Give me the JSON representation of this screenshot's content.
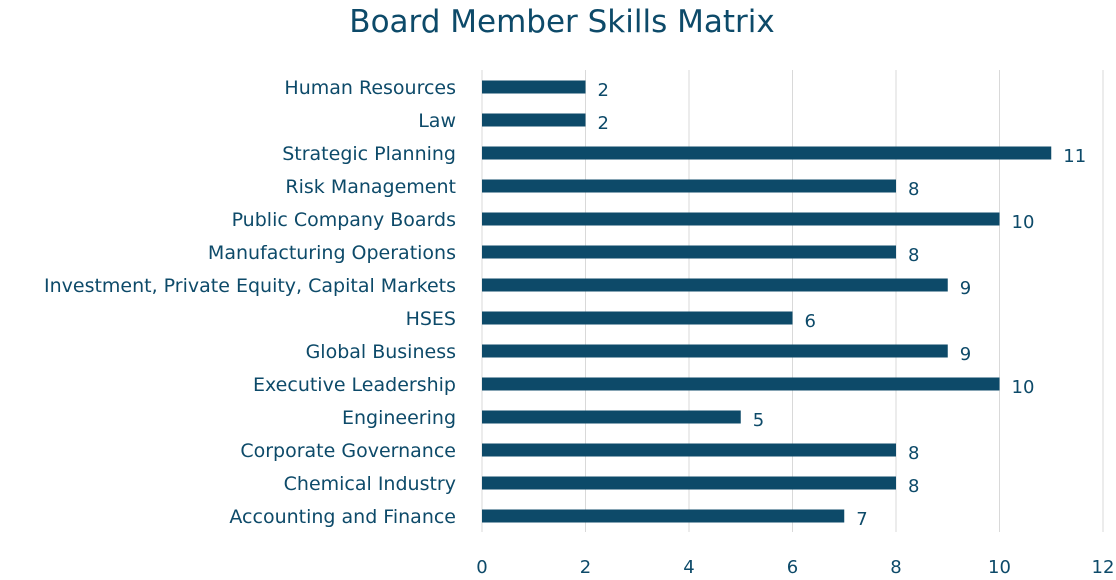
{
  "chart_data": {
    "type": "bar",
    "orientation": "horizontal",
    "title": "Board Member Skills Matrix",
    "xlabel": "",
    "ylabel": "",
    "categories": [
      "Human Resources",
      "Law",
      "Strategic Planning",
      "Risk Management",
      "Public Company Boards",
      "Manufacturing Operations",
      "Investment, Private Equity, Capital Markets",
      "HSES",
      "Global Business",
      "Executive Leadership",
      "Engineering",
      "Corporate Governance",
      "Chemical Industry",
      "Accounting and Finance"
    ],
    "values": [
      2,
      2,
      11,
      8,
      10,
      8,
      9,
      6,
      9,
      10,
      5,
      8,
      8,
      7
    ],
    "xlim": [
      0,
      12
    ],
    "ticks": [
      0,
      2,
      4,
      6,
      8,
      10,
      12
    ],
    "grid": true,
    "legend": "none",
    "data_labels": true,
    "bar_color": "#0d4a69",
    "text_color": "#0d4a69",
    "grid_color": "#d9d9d9"
  }
}
